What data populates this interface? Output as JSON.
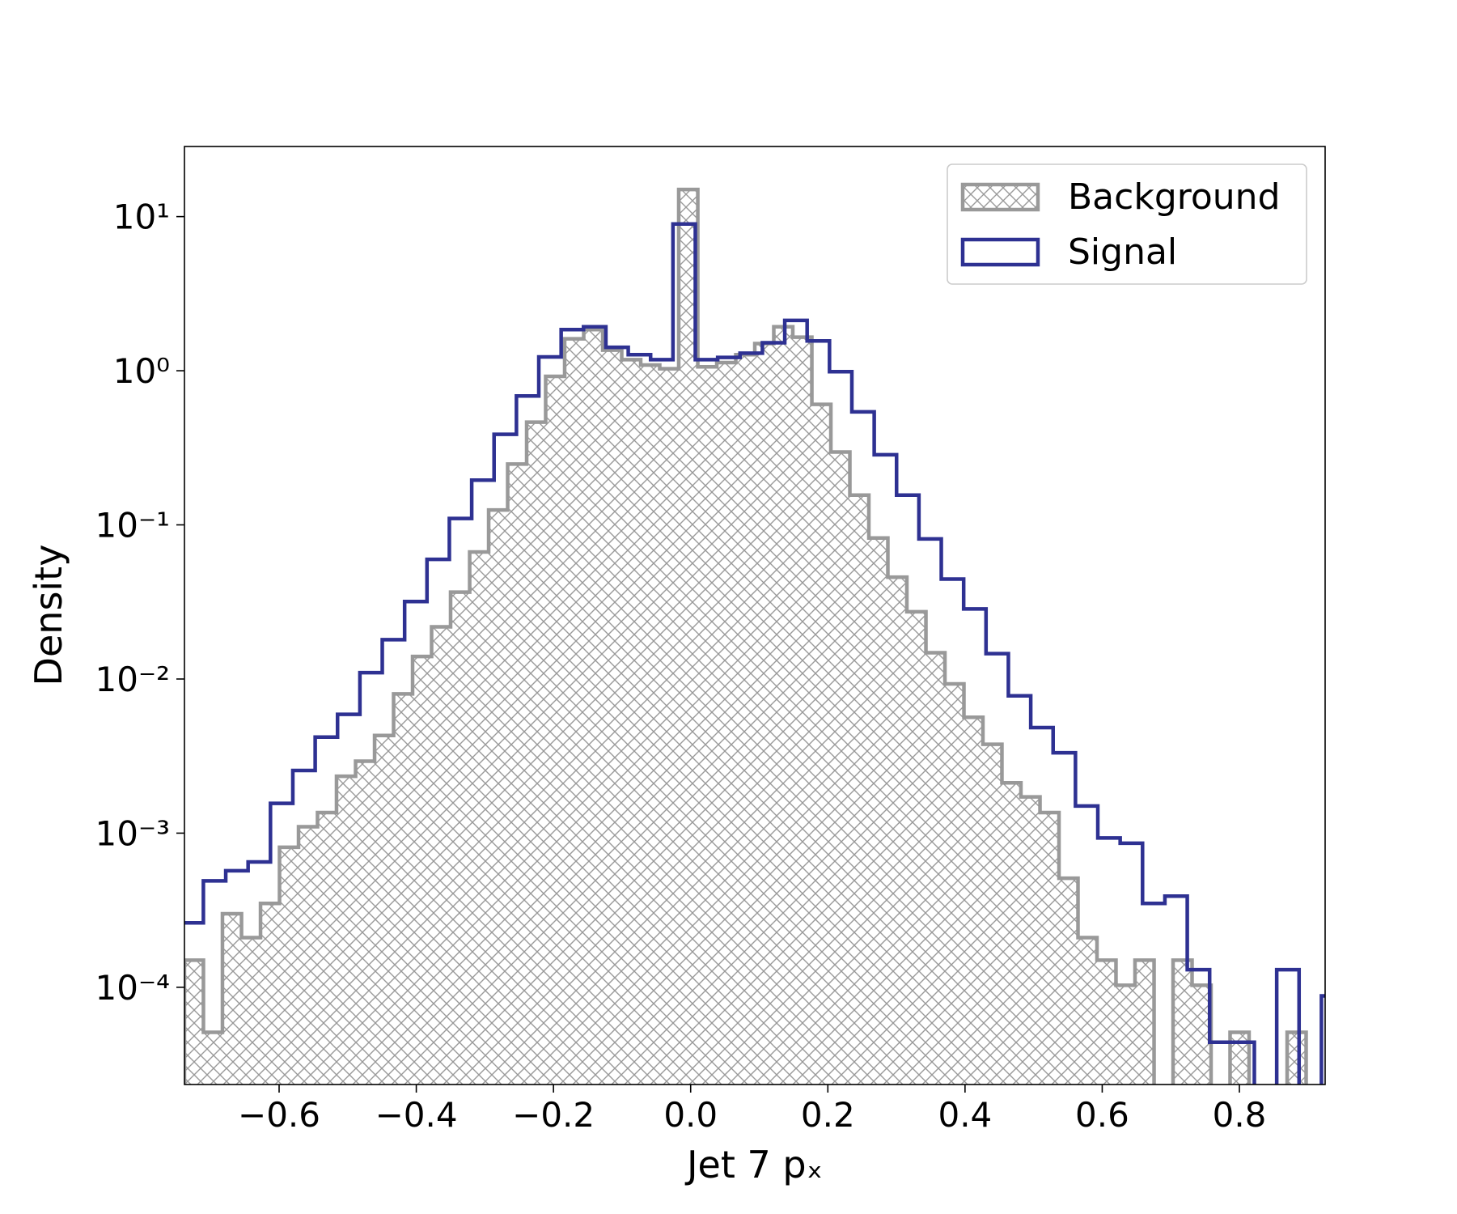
{
  "chart_data": {
    "type": "histogram",
    "xlabel": "Jet 7 pₓ",
    "ylabel": "Density",
    "xlim": [
      -0.738,
      0.925
    ],
    "ylim": [
      2.34e-05,
      28.5
    ],
    "yscale": "log",
    "xticks": [
      {
        "value": -0.6,
        "label": "−0.6"
      },
      {
        "value": -0.4,
        "label": "−0.4"
      },
      {
        "value": -0.2,
        "label": "−0.2"
      },
      {
        "value": 0,
        "label": "0.0"
      },
      0.2,
      0.4,
      0.6,
      0.8
    ],
    "yticks": [
      {
        "value": 0.0001,
        "label": "10⁻⁴"
      },
      {
        "value": 0.001,
        "label": "10⁻³"
      },
      {
        "value": 0.01,
        "label": "10⁻²"
      },
      {
        "value": 0.1,
        "label": "10⁻¹"
      },
      {
        "value": 1,
        "label": "10⁰"
      },
      {
        "value": 10,
        "label": "10¹"
      }
    ],
    "legend": "upper right",
    "series": [
      {
        "name": "Background",
        "color": "#999999",
        "hatch": "xx",
        "bins": [
          -0.738,
          -0.7103,
          -0.6826,
          -0.6548,
          -0.6271,
          -0.5994,
          -0.5717,
          -0.544,
          -0.5163,
          -0.4885,
          -0.4608,
          -0.4331,
          -0.4054,
          -0.3777,
          -0.35,
          -0.3222,
          -0.2945,
          -0.2668,
          -0.2391,
          -0.2114,
          -0.1837,
          -0.1559,
          -0.1282,
          -0.1005,
          -0.0728,
          -0.0451,
          -0.0174,
          0.0104,
          0.0381,
          0.0658,
          0.0935,
          0.1212,
          0.1489,
          0.1767,
          0.2044,
          0.2321,
          0.2598,
          0.2875,
          0.3152,
          0.343,
          0.3707,
          0.3984,
          0.4261,
          0.4538,
          0.4815,
          0.5093,
          0.537,
          0.5647,
          0.5924,
          0.6201,
          0.6478,
          0.6756,
          0.7033,
          0.731,
          0.7587,
          0.7864,
          0.8141,
          0.8419,
          0.8696,
          0.8973,
          0.925
        ],
        "values": [
          0.00015,
          5.1e-05,
          0.0003,
          0.00021,
          0.00035,
          0.00081,
          0.0011,
          0.00136,
          0.00234,
          0.00293,
          0.0043,
          0.008,
          0.014,
          0.0218,
          0.0366,
          0.0667,
          0.125,
          0.248,
          0.464,
          0.92,
          1.61,
          1.85,
          1.36,
          1.18,
          1.09,
          1.03,
          15.0,
          1.06,
          1.13,
          1.27,
          1.5,
          1.93,
          1.65,
          0.605,
          0.297,
          0.156,
          0.0822,
          0.0458,
          0.0273,
          0.0148,
          0.0093,
          0.00565,
          0.00377,
          0.00212,
          0.00172,
          0.00136,
          0.00051,
          0.00021,
          0.00015,
          0.000103,
          0.00015,
          0,
          0.00015,
          0.000103,
          0,
          5.1e-05,
          0,
          0,
          5.1e-05,
          0
        ]
      },
      {
        "name": "Signal",
        "color": "#2e3192",
        "bins": [
          -0.743,
          -0.7104,
          -0.6778,
          -0.6452,
          -0.6126,
          -0.58,
          -0.5474,
          -0.5148,
          -0.4822,
          -0.4496,
          -0.417,
          -0.3844,
          -0.3518,
          -0.3192,
          -0.2866,
          -0.254,
          -0.2214,
          -0.1888,
          -0.1562,
          -0.1236,
          -0.091,
          -0.0584,
          -0.0258,
          0.0068,
          0.0394,
          0.072,
          0.1046,
          0.1372,
          0.1698,
          0.2024,
          0.235,
          0.2676,
          0.3002,
          0.3328,
          0.3654,
          0.398,
          0.4306,
          0.4632,
          0.4958,
          0.5284,
          0.561,
          0.5936,
          0.6262,
          0.6588,
          0.6914,
          0.724,
          0.7566,
          0.7892,
          0.8218,
          0.8544,
          0.887,
          0.9196,
          0.9522
        ],
        "values": [
          0.000262,
          0.00049,
          0.00057,
          0.00065,
          0.00156,
          0.00255,
          0.0042,
          0.0059,
          0.011,
          0.018,
          0.0318,
          0.0597,
          0.11,
          0.195,
          0.387,
          0.686,
          1.23,
          1.85,
          1.93,
          1.42,
          1.27,
          1.18,
          8.95,
          1.18,
          1.22,
          1.3,
          1.52,
          2.12,
          1.56,
          0.986,
          0.541,
          0.285,
          0.156,
          0.0811,
          0.0445,
          0.0285,
          0.0146,
          0.00778,
          0.00484,
          0.00332,
          0.0015,
          0.00093,
          0.00086,
          0.00035,
          0.00039,
          0.00013,
          4.4e-05,
          4.4e-05,
          0,
          0.00013,
          0,
          8.8e-05
        ]
      }
    ]
  }
}
